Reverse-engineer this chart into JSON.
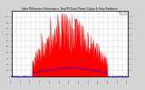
{
  "title": "Solar PV/Inverter Performance Total PV Panel Power Output & Solar Radiation",
  "bg_color": "#d4d4d4",
  "plot_bg": "#ffffff",
  "grid_color": "#aaaaaa",
  "bar_color": "#ff0000",
  "dot_color": "#0000ff",
  "left_axis_color": "#000000",
  "right_axis_color": "#ff0000",
  "n_points": 288,
  "seed": 7
}
